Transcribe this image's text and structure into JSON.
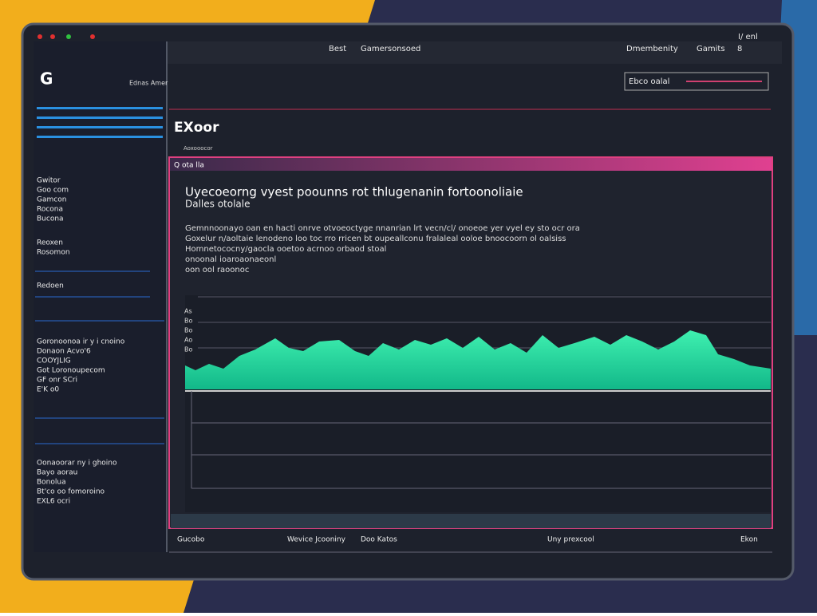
{
  "topbar": {
    "left": [
      "Best",
      "Gamersonsoed"
    ],
    "right": [
      "Dmembenity",
      "Gamits",
      "8"
    ],
    "corner": "I/ enl"
  },
  "sidebar": {
    "logo": "G",
    "brand": "Ednas Amer",
    "group1": [
      "Gwitor",
      "Goo com",
      "Gamcon",
      "Rocona",
      "Bucona"
    ],
    "group2": [
      "Reoxen",
      "Rosomon"
    ],
    "single": "Redoen",
    "block1": [
      "Goronoonoa ir y i cnoino",
      "Donaon Acvo'6",
      "COOYJLIG",
      "Got Loronoupecom",
      "GF onr SCri",
      "E'K o0"
    ],
    "block2": [
      "Oonaoorar ny i ghoino",
      "Bayo aorau",
      "Bonolua",
      "Bt'co oo fomoroino",
      "EXL6 ocri"
    ]
  },
  "main": {
    "search": "Ebco oalal",
    "heading": "EXoor",
    "subheading": "Aoxooocor",
    "panel": {
      "tab": "Q ota lla",
      "title": "Uyecoeorng vyest poounns rot thlugenanin fortoonoliaie",
      "subtitle": "Dalles otolale",
      "body": [
        "Gemnnoonayo oan en hacti onrve otvoeoctyge nnanrian lrt vecn/cl/ onoeoe yer vyel ey sto ocr ora",
        "Goxelur n/aoltaie lenodeno loo toc rro rricen bt oupeallconu fralaleal ooloe bnoocoorn ol oalsiss",
        "Homnetococny/gaocla ooetoo acrnoo orbaod stoal",
        "onoonal ioaroaonaeonl",
        "oon ool raoonoc"
      ],
      "ylabels": [
        "As",
        "Bo",
        "Bo",
        "Ao",
        "Bo"
      ]
    },
    "footer": [
      "Gucobo",
      "Wevice Jcooniny",
      "Doo Katos",
      "Uny prexcool",
      "Ekon"
    ]
  }
}
